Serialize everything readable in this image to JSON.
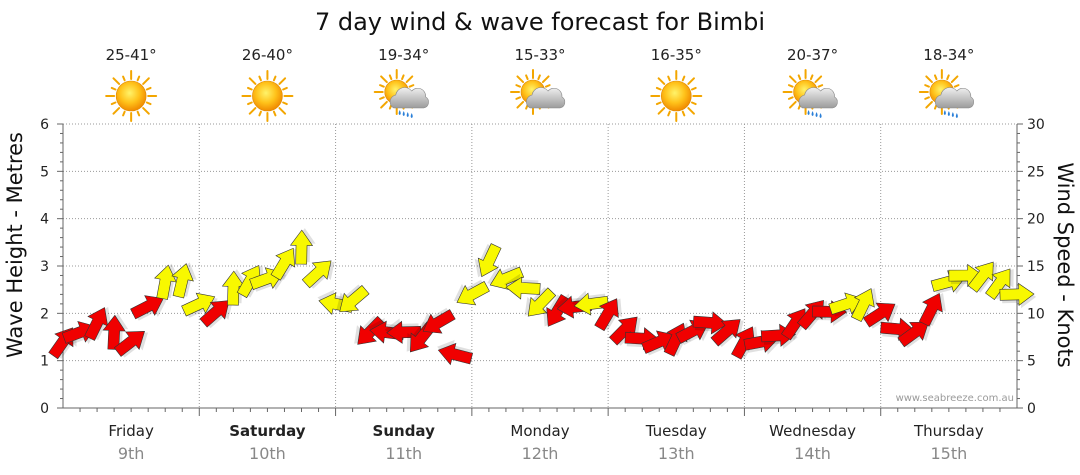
{
  "chart_data": {
    "type": "line",
    "title": "7 day wind & wave forecast for Bimbi",
    "ylabel_left": "Wave Height - Metres",
    "ylabel_right": "Wind Speed - Knots",
    "ylim_left": [
      0,
      6
    ],
    "ylim_right": [
      0,
      30
    ],
    "yticks_left": [
      "0",
      "1",
      "2",
      "3",
      "4",
      "5",
      "6"
    ],
    "yticks_right": [
      "0",
      "5",
      "10",
      "15",
      "20",
      "25",
      "30"
    ],
    "watermark": "www.seabreeze.com.au",
    "days": [
      {
        "name": "Friday",
        "date": "9th",
        "temp": "25-41°",
        "icon": "sun-icon",
        "bold": false
      },
      {
        "name": "Saturday",
        "date": "10th",
        "temp": "26-40°",
        "icon": "sun-icon",
        "bold": true
      },
      {
        "name": "Sunday",
        "date": "11th",
        "temp": "19-34°",
        "icon": "sun-cloud-rain-icon",
        "bold": true
      },
      {
        "name": "Monday",
        "date": "12th",
        "temp": "15-33°",
        "icon": "sun-cloud-icon",
        "bold": false
      },
      {
        "name": "Tuesday",
        "date": "13th",
        "temp": "16-35°",
        "icon": "sun-icon",
        "bold": false
      },
      {
        "name": "Wednesday",
        "date": "14th",
        "temp": "20-37°",
        "icon": "sun-cloud-rain-icon",
        "bold": false
      },
      {
        "name": "Thursday",
        "date": "15th",
        "temp": "18-34°",
        "icon": "sun-cloud-rain-icon",
        "bold": false
      }
    ],
    "wind_series": {
      "name": "Wind Speed",
      "unit": "knots",
      "x_days": [
        0.0,
        0.25,
        0.5,
        0.7,
        0.85,
        1.0,
        1.15,
        1.3,
        1.45,
        1.6,
        1.75,
        1.85,
        2.0,
        2.1,
        2.25,
        2.4,
        2.5,
        2.6,
        2.75,
        2.9,
        3.0,
        3.1,
        3.2,
        3.35,
        3.5,
        3.65,
        3.8,
        3.9,
        4.0,
        4.15,
        4.3,
        4.45,
        4.6,
        4.75,
        4.9,
        5.0,
        5.15,
        5.3,
        5.45,
        5.6,
        5.75,
        5.9,
        6.0,
        6.15,
        6.3,
        6.45,
        6.6,
        6.8,
        7.0
      ],
      "knots": [
        7,
        9,
        7,
        13,
        14,
        11,
        10,
        14,
        13,
        15,
        17,
        15,
        11,
        12,
        8,
        8,
        8,
        7,
        9,
        5,
        12,
        16,
        14,
        13,
        11,
        10,
        11,
        11,
        10,
        8,
        7,
        7,
        8,
        9,
        8,
        7,
        7,
        8,
        10,
        10,
        11,
        11,
        10,
        8,
        8,
        13,
        14,
        14,
        12
      ]
    },
    "wind_colors": {
      "low": "#f00000",
      "mid": "#f8f800",
      "high": "#00e000"
    },
    "colors": {
      "grid": "#999999",
      "axis": "#666666",
      "text": "#222222",
      "date": "#888888"
    }
  }
}
